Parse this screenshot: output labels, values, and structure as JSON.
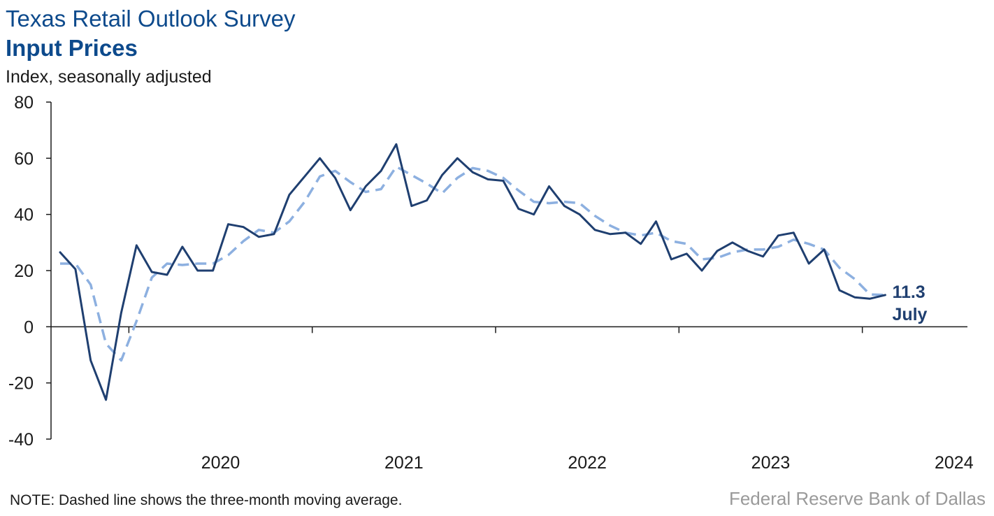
{
  "header": {
    "title": "Texas Retail Outlook Survey",
    "subtitle": "Input Prices",
    "units": "Index, seasonally adjusted"
  },
  "footer": {
    "note": "NOTE: Dashed line shows the three-month moving average.",
    "source": "Federal Reserve Bank of Dallas"
  },
  "chart_data": {
    "type": "line",
    "title": "Input Prices",
    "ylabel": "Index, seasonally adjusted",
    "xlabel": "",
    "ylim": [
      -40,
      80
    ],
    "yticks": [
      80,
      60,
      40,
      20,
      0,
      -20,
      -40
    ],
    "year_labels": [
      "2020",
      "2021",
      "2022",
      "2023",
      "2024"
    ],
    "start": "2019-08",
    "grid": false,
    "legend": "none",
    "colors": {
      "index": "#1f3f70",
      "moving_average": "#8db0e0"
    },
    "series": [
      {
        "style": "solid",
        "values": [
          26.5,
          20.5,
          -12,
          -26,
          5,
          29,
          19.5,
          18.5,
          28.5,
          20,
          20,
          36.5,
          35.5,
          32,
          33,
          47,
          53.5,
          60,
          53,
          41.5,
          50,
          55.5,
          65,
          43,
          45,
          54,
          60,
          55,
          52.5,
          52,
          42,
          40,
          50,
          43,
          40,
          34.5,
          33,
          33.5,
          29.5,
          37.5,
          24,
          26,
          20,
          27,
          30,
          27,
          25,
          32.5,
          33.5,
          22.5,
          27.5,
          13,
          10.5,
          10,
          11.3
        ]
      },
      {
        "style": "dashed",
        "values": [
          22.5,
          22.5,
          15,
          -6,
          -12,
          2,
          17.5,
          22.5,
          22,
          22.5,
          22.5,
          25.5,
          30.5,
          34.5,
          33.5,
          37.5,
          44.5,
          53.5,
          55.5,
          51.5,
          48,
          49,
          57,
          54,
          51,
          47.5,
          53,
          56.5,
          55.5,
          53,
          48.5,
          44.5,
          44,
          44.5,
          44,
          39.5,
          36,
          33.5,
          32.5,
          33.5,
          30.5,
          29.5,
          24,
          24.5,
          26.5,
          27.5,
          27.5,
          28.5,
          31,
          29.5,
          27.5,
          21,
          17,
          11.5,
          11.3
        ]
      }
    ],
    "end_label": {
      "value": "11.3",
      "month": "July"
    }
  }
}
